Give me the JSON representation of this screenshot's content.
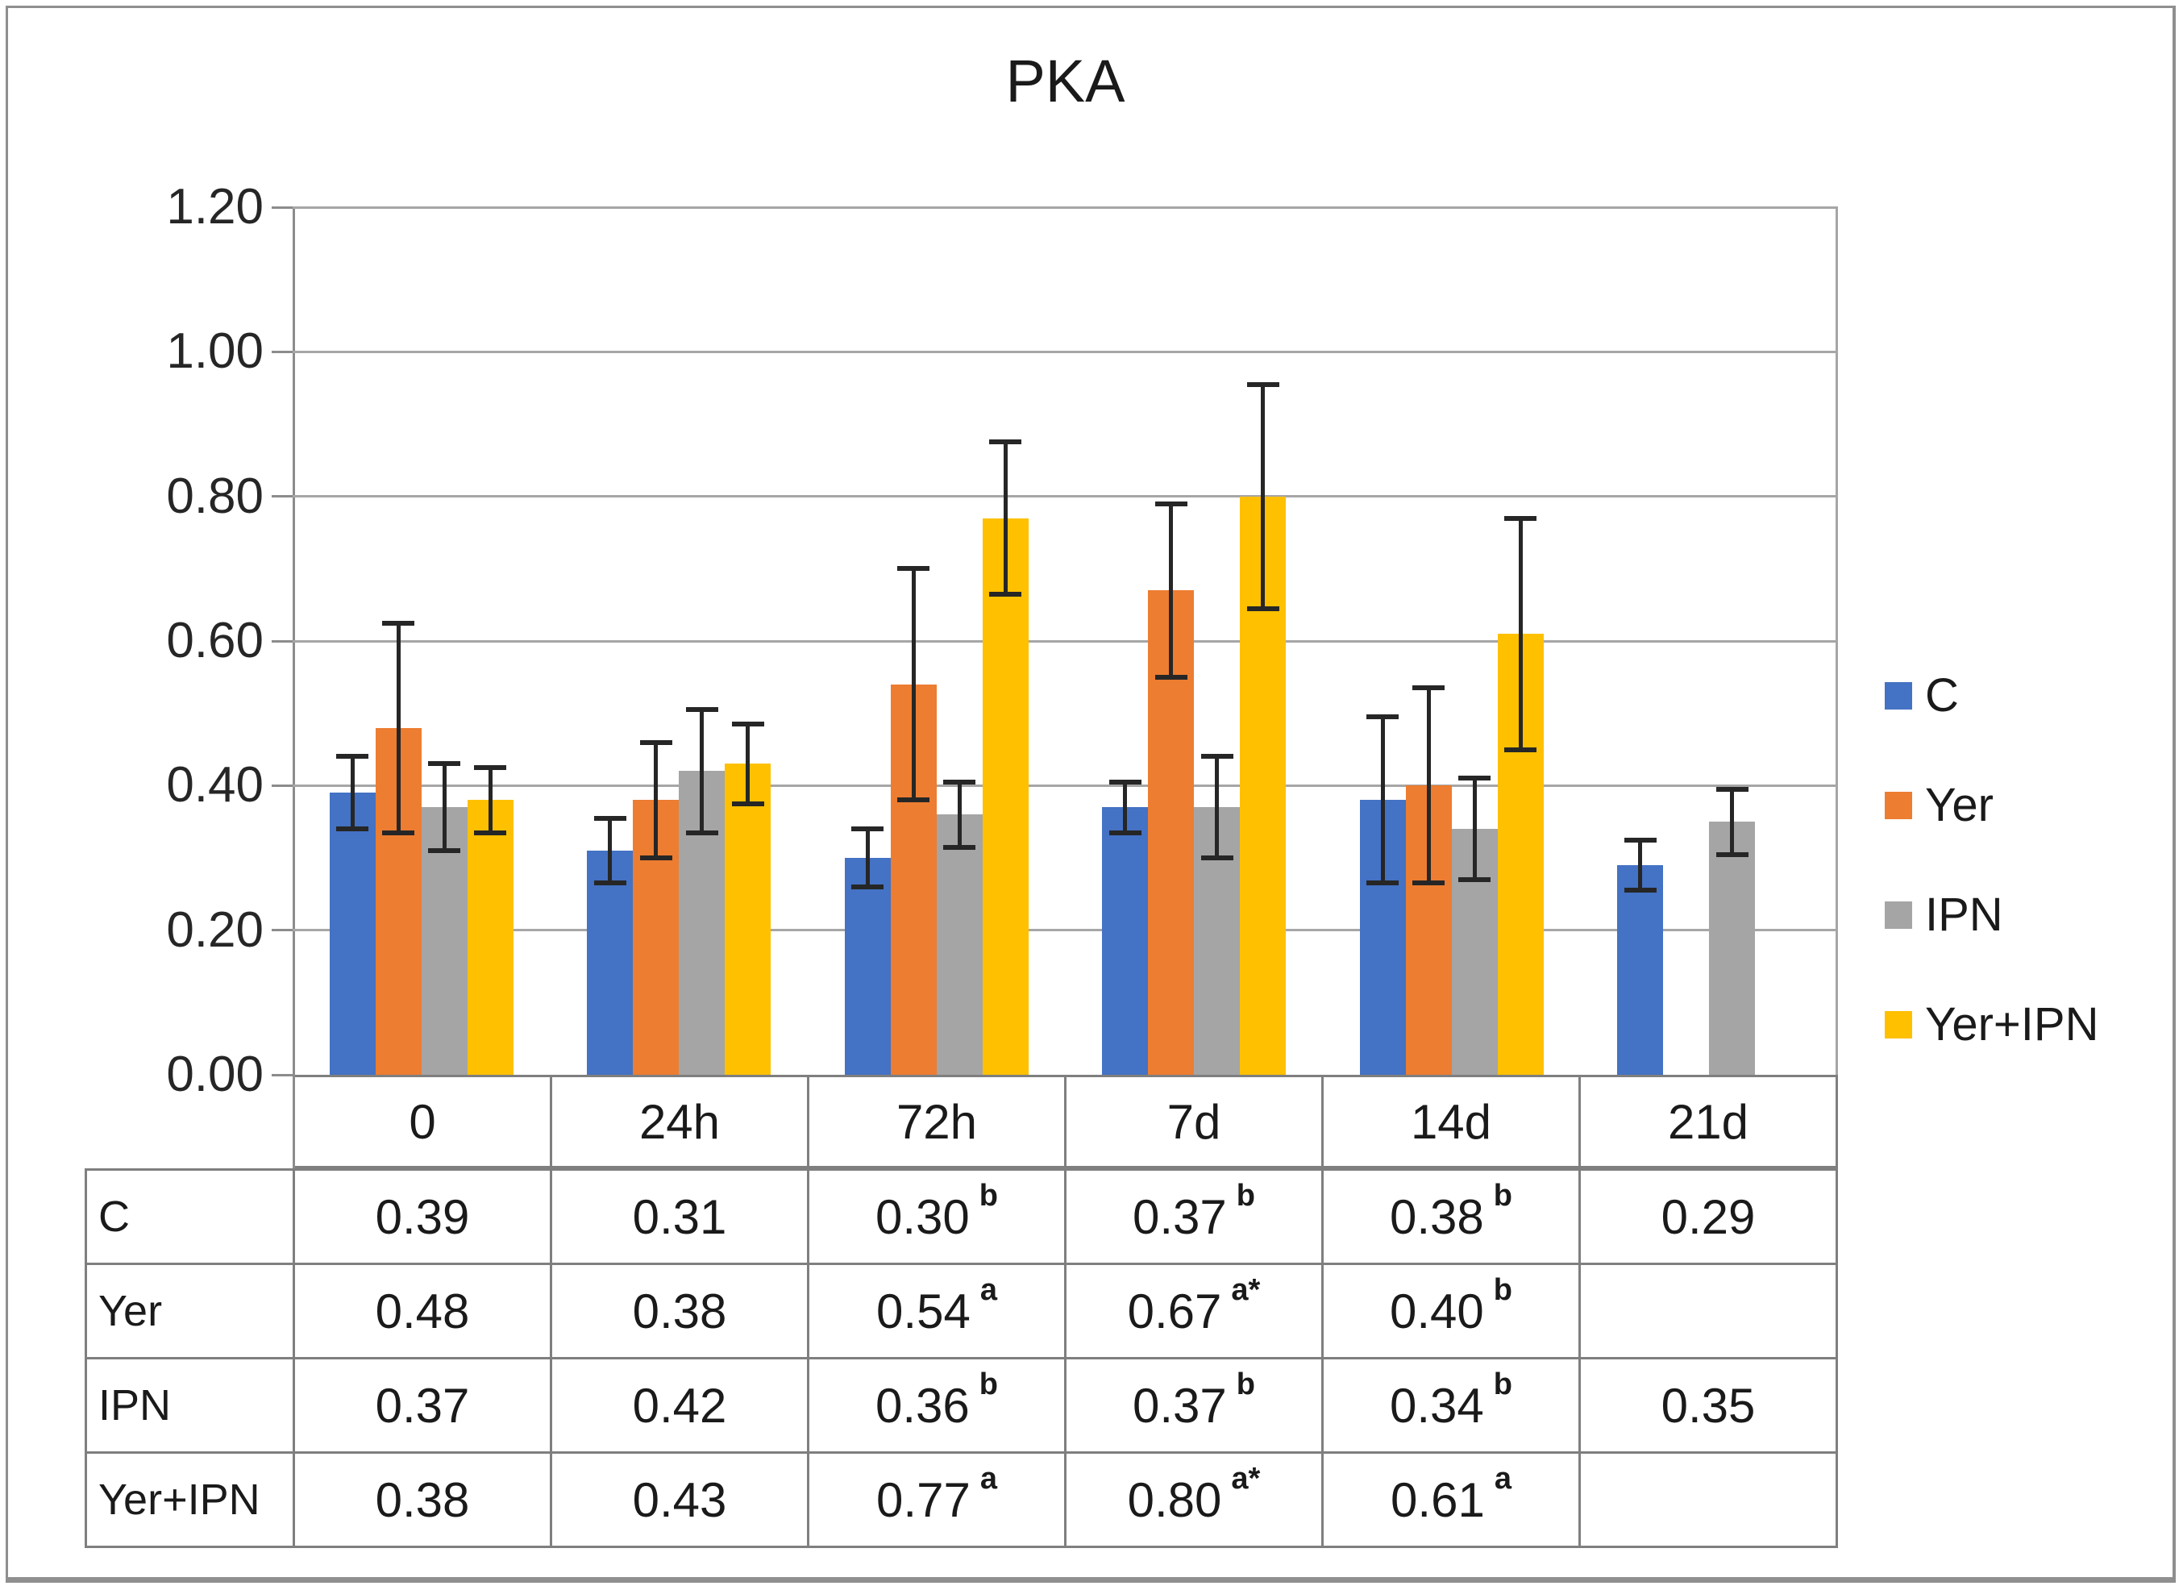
{
  "chart_data": {
    "type": "bar",
    "title": "PKA",
    "categories": [
      "0",
      "24h",
      "72h",
      "7d",
      "14d",
      "21d"
    ],
    "series": [
      {
        "name": "C",
        "color": "#4472C4",
        "values": [
          0.39,
          0.31,
          0.3,
          0.37,
          0.38,
          0.29
        ],
        "errors": [
          0.05,
          0.045,
          0.04,
          0.035,
          0.115,
          0.035
        ],
        "superscripts": [
          "",
          "",
          "b",
          "b",
          "b",
          ""
        ]
      },
      {
        "name": "Yer",
        "color": "#ED7D31",
        "values": [
          0.48,
          0.38,
          0.54,
          0.67,
          0.4,
          null
        ],
        "errors": [
          0.145,
          0.08,
          0.16,
          0.12,
          0.135,
          null
        ],
        "superscripts": [
          "",
          "",
          "a",
          "a*",
          "b",
          ""
        ]
      },
      {
        "name": "IPN",
        "color": "#A5A5A5",
        "values": [
          0.37,
          0.42,
          0.36,
          0.37,
          0.34,
          0.35
        ],
        "errors": [
          0.06,
          0.085,
          0.045,
          0.07,
          0.07,
          0.045
        ],
        "superscripts": [
          "",
          "",
          "b",
          "b",
          "b",
          ""
        ]
      },
      {
        "name": "Yer+IPN",
        "color": "#FFC000",
        "values": [
          0.38,
          0.43,
          0.77,
          0.8,
          0.61,
          null
        ],
        "errors": [
          0.045,
          0.055,
          0.105,
          0.155,
          0.16,
          null
        ],
        "superscripts": [
          "",
          "",
          "a",
          "a*",
          "a",
          ""
        ]
      }
    ],
    "y_axis": {
      "min": 0.0,
      "max": 1.2,
      "step": 0.2,
      "tick_labels": [
        "0.00",
        "0.20",
        "0.40",
        "0.60",
        "0.80",
        "1.00",
        "1.20"
      ]
    },
    "grid": true,
    "legend_position": "right",
    "colors": {
      "gridline": "#a6a6a6",
      "axis": "#8c8c8c",
      "table_border": "#7f7f7f",
      "error_bar": "#262626",
      "text": "#1a1a1a"
    }
  }
}
